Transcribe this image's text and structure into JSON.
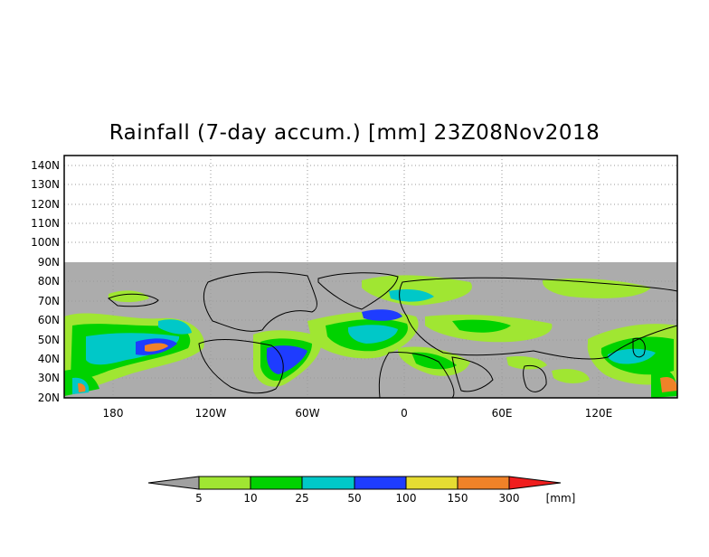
{
  "title": "Rainfall (7-day accum.) [mm] 23Z08Nov2018",
  "map": {
    "latitude_labels": [
      "140N",
      "130N",
      "120N",
      "110N",
      "100N",
      "90N",
      "80N",
      "70N",
      "60N",
      "50N",
      "40N",
      "30N",
      "20N"
    ],
    "longitude_labels": [
      "180",
      "120W",
      "60W",
      "0",
      "60E",
      "120E"
    ],
    "no_data_color": "#acacac",
    "frame_color": "#000000"
  },
  "colorbar": {
    "tick_labels": [
      "5",
      "10",
      "25",
      "50",
      "100",
      "150",
      "300"
    ],
    "unit": "[mm]",
    "colors": {
      "below": "#a0a0a0",
      "c5_10": "#a0e632",
      "c10_25": "#00d200",
      "c25_50": "#00c8c8",
      "c50_100": "#1e3cff",
      "c100_150": "#e6dc32",
      "c150_300": "#f08228",
      "above": "#f01e1e"
    }
  }
}
